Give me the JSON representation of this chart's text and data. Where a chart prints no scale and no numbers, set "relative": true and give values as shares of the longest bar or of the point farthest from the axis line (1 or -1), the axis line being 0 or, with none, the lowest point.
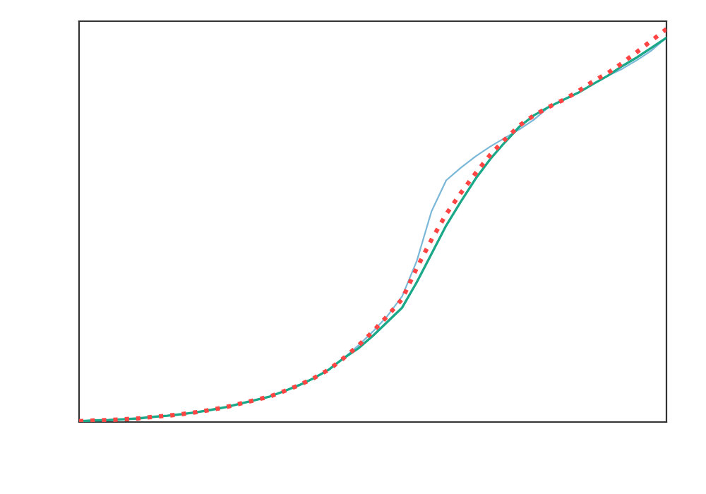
{
  "chart_data": {
    "type": "line",
    "relative": true,
    "grid": false,
    "legend": false,
    "categories": [
      null,
      null,
      null,
      null,
      null,
      null,
      null,
      null,
      null,
      null,
      null,
      null,
      null,
      null,
      null,
      null,
      null,
      null,
      null,
      null,
      null,
      null,
      null,
      null,
      null,
      null,
      null,
      null,
      null,
      null,
      null,
      null,
      null,
      null,
      null,
      null,
      null,
      null,
      null,
      null,
      null
    ],
    "series": [
      {
        "color": "#7bb8d8",
        "line_style": "solid",
        "marker": "none",
        "values": [
          0.002,
          0.004,
          0.005,
          0.007,
          0.009,
          0.013,
          0.016,
          0.02,
          0.025,
          0.031,
          0.038,
          0.047,
          0.056,
          0.065,
          0.079,
          0.094,
          0.112,
          0.133,
          0.162,
          0.194,
          0.23,
          0.27,
          0.32,
          0.41,
          0.536,
          0.615,
          0.647,
          0.676,
          0.701,
          0.723,
          0.745,
          0.77,
          0.802,
          0.82,
          0.838,
          0.86,
          0.881,
          0.899,
          0.921,
          0.946,
          0.978
        ]
      },
      {
        "color": "#1aa889",
        "line_style": "solid",
        "marker": "none",
        "values": [
          0.002,
          0.004,
          0.005,
          0.007,
          0.009,
          0.013,
          0.016,
          0.02,
          0.025,
          0.031,
          0.038,
          0.047,
          0.056,
          0.065,
          0.079,
          0.094,
          0.112,
          0.133,
          0.162,
          0.187,
          0.219,
          0.255,
          0.291,
          0.356,
          0.428,
          0.5,
          0.561,
          0.619,
          0.669,
          0.712,
          0.752,
          0.781,
          0.802,
          0.82,
          0.838,
          0.86,
          0.881,
          0.906,
          0.928,
          0.953,
          0.978
        ]
      },
      {
        "color": "#ff4444",
        "line_style": "dotted",
        "marker": "none",
        "values": [
          0.002,
          0.004,
          0.005,
          0.007,
          0.009,
          0.013,
          0.016,
          0.02,
          0.025,
          0.031,
          0.038,
          0.047,
          0.056,
          0.065,
          0.079,
          0.094,
          0.112,
          0.133,
          0.162,
          0.194,
          0.23,
          0.27,
          0.313,
          0.392,
          0.464,
          0.529,
          0.583,
          0.633,
          0.68,
          0.719,
          0.755,
          0.781,
          0.802,
          0.82,
          0.842,
          0.867,
          0.888,
          0.914,
          0.942,
          0.971,
          1.0
        ]
      }
    ]
  }
}
